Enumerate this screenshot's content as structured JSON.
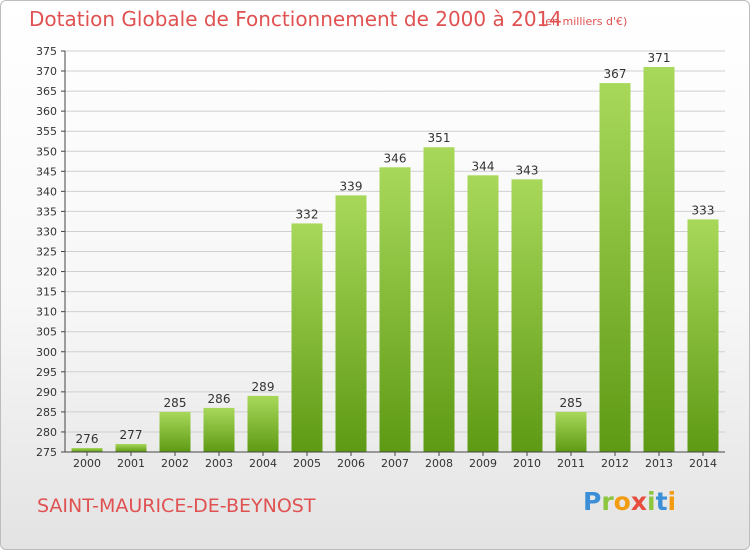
{
  "title": "Dotation Globale de Fonctionnement de 2000 à 2014",
  "subtitle": "(en milliers d'€)",
  "place_name": "SAINT-MAURICE-DE-BEYNOST",
  "logo": {
    "letters": [
      "P",
      "r",
      "o",
      "x",
      "i",
      "t",
      "i"
    ],
    "colors": [
      "#3a8fd6",
      "#8cc63f",
      "#f39c12",
      "#e74c3c",
      "#8cc63f",
      "#3a8fd6",
      "#f39c12"
    ]
  },
  "colors": {
    "bar_top": "#a8d85a",
    "bar_bottom": "#5e9a14",
    "title": "#e05252"
  },
  "chart_data": {
    "type": "bar",
    "title": "Dotation Globale de Fonctionnement de 2000 à 2014",
    "categories": [
      "2000",
      "2001",
      "2002",
      "2003",
      "2004",
      "2005",
      "2006",
      "2007",
      "2008",
      "2009",
      "2010",
      "2011",
      "2012",
      "2013",
      "2014"
    ],
    "values": [
      276,
      277,
      285,
      286,
      289,
      332,
      339,
      346,
      351,
      344,
      343,
      285,
      367,
      371,
      333
    ],
    "ylim": [
      275,
      375
    ],
    "yticks": [
      275,
      280,
      285,
      290,
      295,
      300,
      305,
      310,
      315,
      320,
      325,
      330,
      335,
      340,
      345,
      350,
      355,
      360,
      365,
      370,
      375
    ],
    "grid": true
  }
}
